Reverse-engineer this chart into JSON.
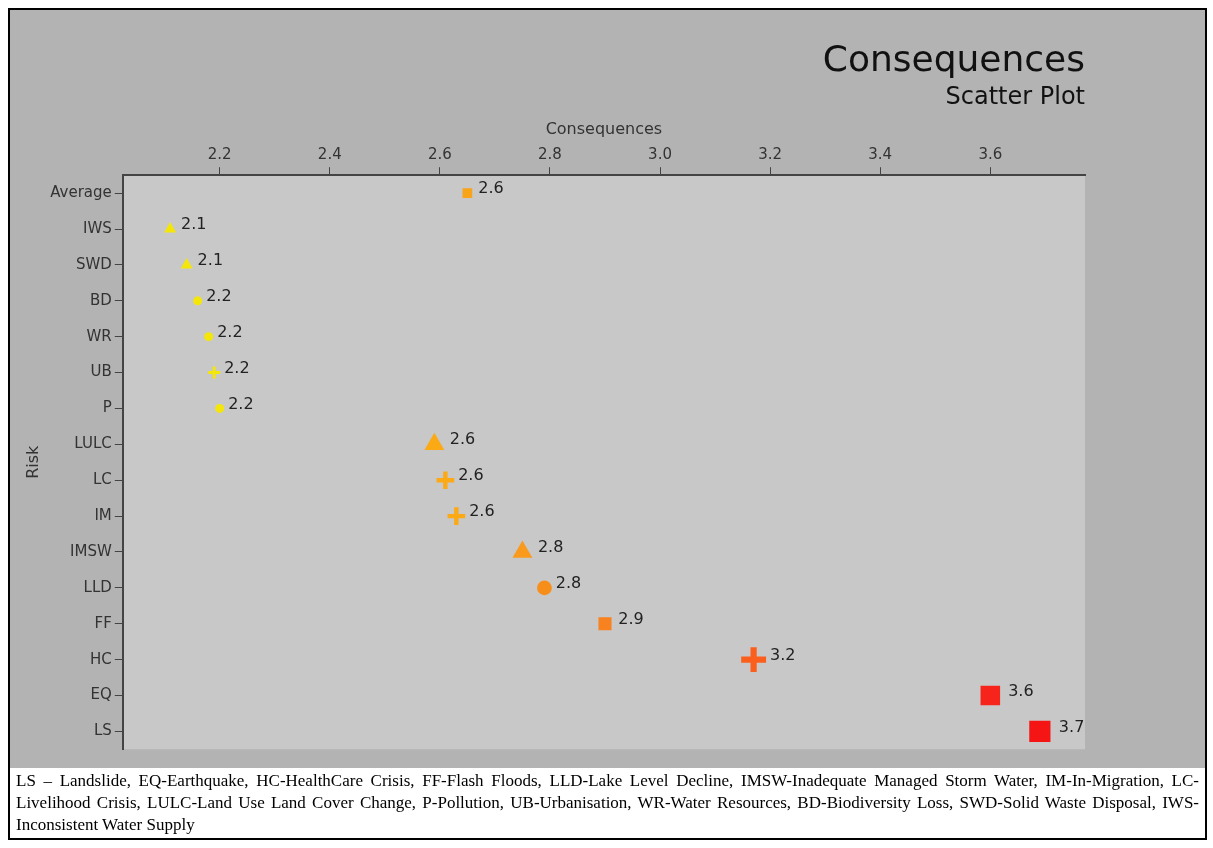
{
  "chart_data": {
    "type": "bubble",
    "title": "Consequences",
    "subtitle": "Scatter Plot",
    "xlabel": "Consequences",
    "ylabel": "Risk",
    "orientation": "horizontal",
    "categories": [
      "Average",
      "IWS",
      "SWD",
      "BD",
      "WR",
      "UB",
      "P",
      "LULC",
      "LC",
      "IM",
      "IMSW",
      "LLD",
      "FF",
      "HC",
      "EQ",
      "LS"
    ],
    "xlim": [
      2.024,
      3.772
    ],
    "xticks": [
      2.2,
      2.4,
      2.6,
      2.8,
      {
        "value": 3,
        "label": "3.0"
      },
      3.2,
      3.4,
      3.6
    ],
    "legend": false,
    "grid": false,
    "series": [
      {
        "marker": "square",
        "values": [
          2.65,
          null,
          null,
          null,
          null,
          null,
          null,
          null,
          null,
          null,
          null,
          null,
          2.9,
          null,
          3.6,
          3.69
        ],
        "colors": [
          "#f7a41a",
          null,
          null,
          null,
          null,
          null,
          null,
          null,
          null,
          null,
          null,
          null,
          "#f7821f",
          null,
          "#f7241c",
          "#f51515"
        ],
        "sizes": [
          0.21,
          null,
          null,
          null,
          null,
          null,
          null,
          null,
          null,
          null,
          null,
          null,
          0.38,
          null,
          0.85,
          1
        ],
        "value_labels": [
          "2.6",
          null,
          null,
          null,
          null,
          null,
          null,
          null,
          null,
          null,
          null,
          null,
          "2.9",
          null,
          "3.6",
          "3.7"
        ]
      },
      {
        "marker": "triangle",
        "values": [
          null,
          2.11,
          2.14,
          null,
          null,
          null,
          null,
          2.59,
          null,
          null,
          2.75,
          null,
          null,
          null,
          null,
          null
        ],
        "colors": [
          null,
          "#f5e60a",
          "#f5e60a",
          null,
          null,
          null,
          null,
          "#fba914",
          null,
          null,
          "#f99a1c",
          null,
          null,
          null,
          null,
          null
        ],
        "sizes": [
          null,
          0.14,
          0.14,
          null,
          null,
          null,
          null,
          0.38,
          null,
          null,
          0.38,
          null,
          null,
          null,
          null,
          null
        ],
        "value_labels": [
          null,
          "2.1",
          "2.1",
          null,
          null,
          null,
          null,
          "2.6",
          null,
          null,
          "2.8",
          null,
          null,
          null,
          null,
          null
        ]
      },
      {
        "marker": "circle",
        "values": [
          null,
          null,
          null,
          2.16,
          2.18,
          null,
          2.2,
          null,
          null,
          null,
          null,
          2.79,
          null,
          null,
          null,
          null
        ],
        "colors": [
          null,
          null,
          null,
          "#f5e60a",
          "#f5e60a",
          null,
          "#f5e60a",
          null,
          null,
          null,
          null,
          "#f88e1a",
          null,
          null,
          null,
          null
        ],
        "sizes": [
          null,
          null,
          null,
          0.14,
          0.14,
          null,
          0.14,
          null,
          null,
          null,
          null,
          0.38,
          null,
          null,
          null,
          null
        ],
        "value_labels": [
          null,
          null,
          null,
          "2.2",
          "2.2",
          null,
          "2.2",
          null,
          null,
          null,
          null,
          "2.8",
          null,
          null,
          null,
          null
        ]
      },
      {
        "marker": "cross",
        "values": [
          null,
          null,
          null,
          null,
          null,
          2.19,
          null,
          null,
          2.61,
          2.63,
          null,
          null,
          null,
          3.17,
          null,
          null
        ],
        "colors": [
          null,
          null,
          null,
          null,
          null,
          "#f5e60a",
          null,
          null,
          "#fba914",
          "#fba914",
          null,
          null,
          null,
          "#fb5f1d",
          null,
          null
        ],
        "sizes": [
          null,
          null,
          null,
          null,
          null,
          0.14,
          null,
          null,
          0.3,
          0.3,
          null,
          null,
          null,
          0.6,
          null,
          null
        ],
        "value_labels": [
          null,
          null,
          null,
          null,
          null,
          "2.2",
          null,
          null,
          "2.6",
          "2.6",
          null,
          null,
          null,
          "3.2",
          null,
          null
        ]
      }
    ],
    "annotations": [
      "LS – Landslide, EQ-Earthquake, HC-HealthCare Crisis, FF-Flash Floods, LLD-Lake Level Decline, IMSW-Inadequate Managed Storm Water, IM-In-Migration, LC-Livelihood Crisis, LULC-Land Use Land Cover Change, P-Pollution, UB-Urbanisation, WR-Water Resources, BD-Biodiversity Loss, SWD-Solid Waste Disposal, IWS-Inconsistent Water Supply"
    ]
  }
}
